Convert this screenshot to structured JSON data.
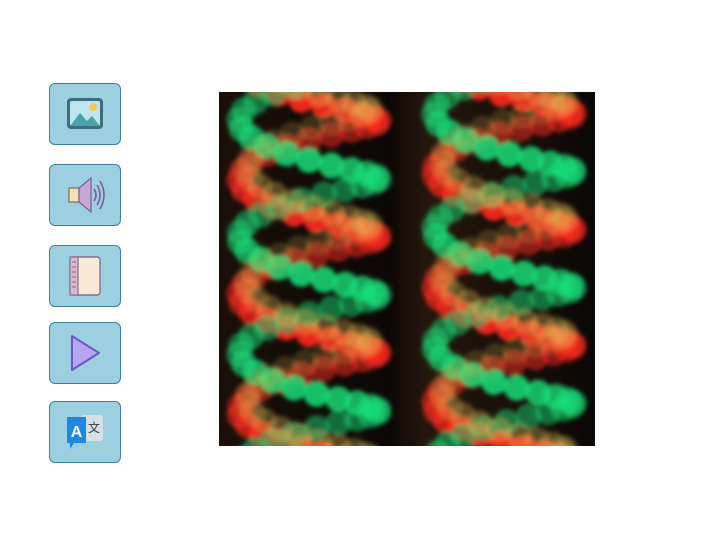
{
  "toolbar": {
    "buttons": [
      {
        "id": "image",
        "icon": "image-icon"
      },
      {
        "id": "audio",
        "icon": "speaker-icon"
      },
      {
        "id": "book",
        "icon": "book-icon"
      },
      {
        "id": "play",
        "icon": "play-icon"
      },
      {
        "id": "translate",
        "icon": "translate-icon",
        "glyph_a": "A",
        "glyph_b": "文"
      }
    ]
  },
  "photo": {
    "subject": "bokeh-light-spirals",
    "colors": {
      "red": "#ff2a1f",
      "green": "#19e07a",
      "amber": "#e8c35a",
      "background": "#0b0705"
    }
  }
}
